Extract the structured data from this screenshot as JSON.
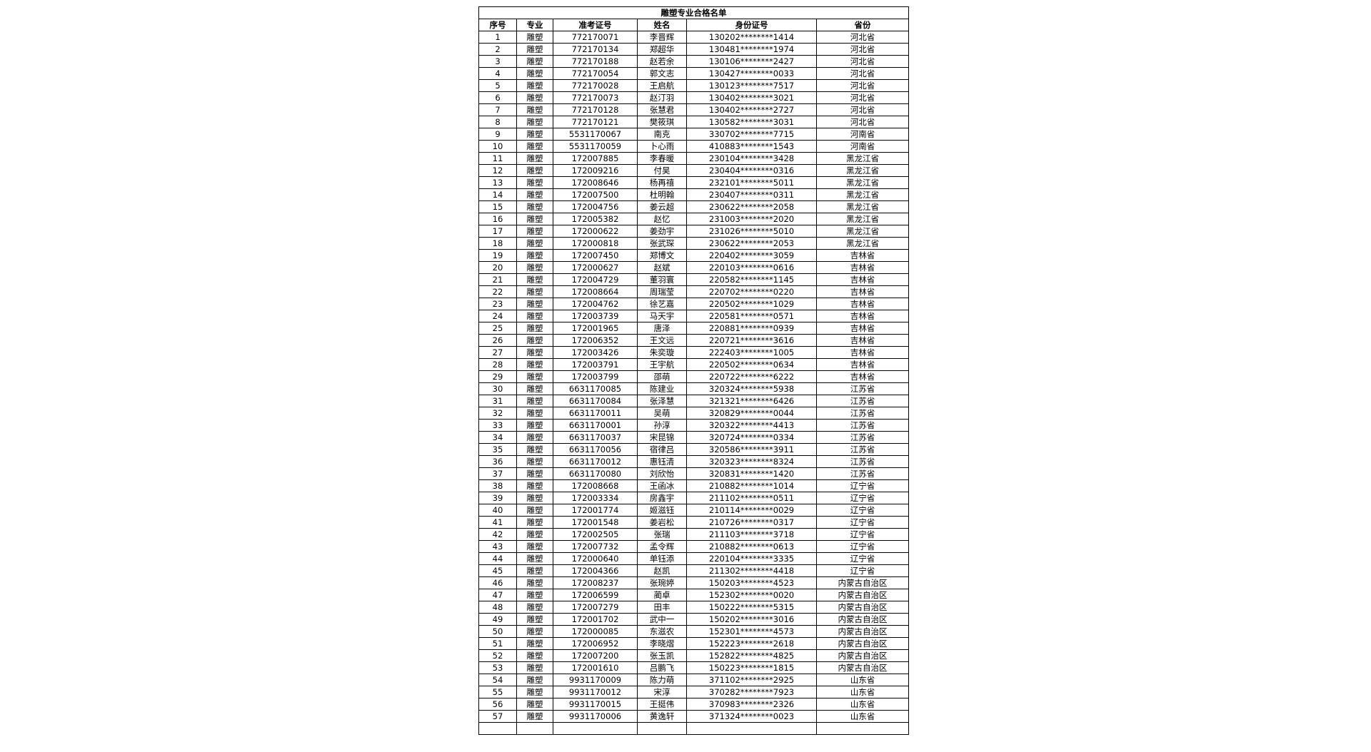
{
  "table": {
    "title": "雕塑专业合格名单",
    "headers": [
      "序号",
      "专业",
      "准考证号",
      "姓名",
      "身份证号",
      "省份"
    ],
    "rows": [
      [
        "1",
        "雕塑",
        "772170071",
        "李晋辉",
        "130202********1414",
        "河北省"
      ],
      [
        "2",
        "雕塑",
        "772170134",
        "郑超华",
        "130481********1974",
        "河北省"
      ],
      [
        "3",
        "雕塑",
        "772170188",
        "赵若余",
        "130106********2427",
        "河北省"
      ],
      [
        "4",
        "雕塑",
        "772170054",
        "郭文志",
        "130427********0033",
        "河北省"
      ],
      [
        "5",
        "雕塑",
        "772170028",
        "王启航",
        "130123********7517",
        "河北省"
      ],
      [
        "6",
        "雕塑",
        "772170073",
        "赵汀羽",
        "130402********3021",
        "河北省"
      ],
      [
        "7",
        "雕塑",
        "772170128",
        "张慧君",
        "130402********2727",
        "河北省"
      ],
      [
        "8",
        "雕塑",
        "772170121",
        "樊筱琪",
        "130582********3031",
        "河北省"
      ],
      [
        "9",
        "雕塑",
        "5531170067",
        "南克",
        "330702********7715",
        "河南省"
      ],
      [
        "10",
        "雕塑",
        "5531170059",
        "卜心雨",
        "410883********1543",
        "河南省"
      ],
      [
        "11",
        "雕塑",
        "172007885",
        "李春暖",
        "230104********3428",
        "黑龙江省"
      ],
      [
        "12",
        "雕塑",
        "172009216",
        "付昊",
        "230404********0316",
        "黑龙江省"
      ],
      [
        "13",
        "雕塑",
        "172008646",
        "杨再禧",
        "232101********5011",
        "黑龙江省"
      ],
      [
        "14",
        "雕塑",
        "172007500",
        "杜明翰",
        "230407********0311",
        "黑龙江省"
      ],
      [
        "15",
        "雕塑",
        "172004756",
        "姜云超",
        "230622********2058",
        "黑龙江省"
      ],
      [
        "16",
        "雕塑",
        "172005382",
        "赵忆",
        "231003********2020",
        "黑龙江省"
      ],
      [
        "17",
        "雕塑",
        "172000622",
        "姜劲宇",
        "231026********5010",
        "黑龙江省"
      ],
      [
        "18",
        "雕塑",
        "172000818",
        "张武琛",
        "230622********2053",
        "黑龙江省"
      ],
      [
        "19",
        "雕塑",
        "172007450",
        "郑博文",
        "220402********3059",
        "吉林省"
      ],
      [
        "20",
        "雕塑",
        "172000627",
        "赵斌",
        "220103********0616",
        "吉林省"
      ],
      [
        "21",
        "雕塑",
        "172004729",
        "董羽寰",
        "220582********1145",
        "吉林省"
      ],
      [
        "22",
        "雕塑",
        "172008664",
        "周瑞莹",
        "220702********0220",
        "吉林省"
      ],
      [
        "23",
        "雕塑",
        "172004762",
        "徐艺嘉",
        "220502********1029",
        "吉林省"
      ],
      [
        "24",
        "雕塑",
        "172003739",
        "马天宇",
        "220581********0571",
        "吉林省"
      ],
      [
        "25",
        "雕塑",
        "172001965",
        "唐泽",
        "220881********0939",
        "吉林省"
      ],
      [
        "26",
        "雕塑",
        "172006352",
        "王文远",
        "220721********3616",
        "吉林省"
      ],
      [
        "27",
        "雕塑",
        "172003426",
        "朱奕璇",
        "222403********1005",
        "吉林省"
      ],
      [
        "28",
        "雕塑",
        "172003791",
        "王宇航",
        "220502********0634",
        "吉林省"
      ],
      [
        "29",
        "雕塑",
        "172003799",
        "邵萌",
        "220722********6222",
        "吉林省"
      ],
      [
        "30",
        "雕塑",
        "6631170085",
        "陈建业",
        "320324********5938",
        "江苏省"
      ],
      [
        "31",
        "雕塑",
        "6631170084",
        "张泽慧",
        "321321********6426",
        "江苏省"
      ],
      [
        "32",
        "雕塑",
        "6631170011",
        "吴萌",
        "320829********0044",
        "江苏省"
      ],
      [
        "33",
        "雕塑",
        "6631170001",
        "孙淳",
        "320322********4413",
        "江苏省"
      ],
      [
        "34",
        "雕塑",
        "6631170037",
        "宋昆锦",
        "320724********0334",
        "江苏省"
      ],
      [
        "35",
        "雕塑",
        "6631170056",
        "宿律吕",
        "320586********3911",
        "江苏省"
      ],
      [
        "36",
        "雕塑",
        "6631170012",
        "惠钰清",
        "320323********8324",
        "江苏省"
      ],
      [
        "37",
        "雕塑",
        "6631170080",
        "刘欣怡",
        "320831********1420",
        "江苏省"
      ],
      [
        "38",
        "雕塑",
        "172008668",
        "王函冰",
        "210882********1014",
        "辽宁省"
      ],
      [
        "39",
        "雕塑",
        "172003334",
        "房鑫宇",
        "211102********0511",
        "辽宁省"
      ],
      [
        "40",
        "雕塑",
        "172001774",
        "姬滋钰",
        "210114********0029",
        "辽宁省"
      ],
      [
        "41",
        "雕塑",
        "172001548",
        "姜岩松",
        "210726********0317",
        "辽宁省"
      ],
      [
        "42",
        "雕塑",
        "172002505",
        "张瑞",
        "211103********3718",
        "辽宁省"
      ],
      [
        "43",
        "雕塑",
        "172007732",
        "孟令辉",
        "210882********0613",
        "辽宁省"
      ],
      [
        "44",
        "雕塑",
        "172000640",
        "单钰添",
        "220104********3335",
        "辽宁省"
      ],
      [
        "45",
        "雕塑",
        "172004366",
        "赵凯",
        "211302********4418",
        "辽宁省"
      ],
      [
        "46",
        "雕塑",
        "172008237",
        "张琬婷",
        "150203********4523",
        "内蒙古自治区"
      ],
      [
        "47",
        "雕塑",
        "172006599",
        "蔺卓",
        "152302********0020",
        "内蒙古自治区"
      ],
      [
        "48",
        "雕塑",
        "172007279",
        "田丰",
        "150222********5315",
        "内蒙古自治区"
      ],
      [
        "49",
        "雕塑",
        "172001702",
        "武中一",
        "150202********3016",
        "内蒙古自治区"
      ],
      [
        "50",
        "雕塑",
        "172000085",
        "东滋农",
        "152301********4573",
        "内蒙古自治区"
      ],
      [
        "51",
        "雕塑",
        "172006952",
        "李晓熠",
        "152223********2618",
        "内蒙古自治区"
      ],
      [
        "52",
        "雕塑",
        "172007200",
        "张玉凯",
        "152822********4825",
        "内蒙古自治区"
      ],
      [
        "53",
        "雕塑",
        "172001610",
        "吕鹏飞",
        "150223********1815",
        "内蒙古自治区"
      ],
      [
        "54",
        "雕塑",
        "9931170009",
        "陈力萌",
        "371102********2925",
        "山东省"
      ],
      [
        "55",
        "雕塑",
        "9931170012",
        "宋淳",
        "370282********7923",
        "山东省"
      ],
      [
        "56",
        "雕塑",
        "9931170015",
        "王挺伟",
        "370983********2326",
        "山东省"
      ],
      [
        "57",
        "雕塑",
        "9931170006",
        "黄逸轩",
        "371324********0023",
        "山东省"
      ]
    ]
  }
}
